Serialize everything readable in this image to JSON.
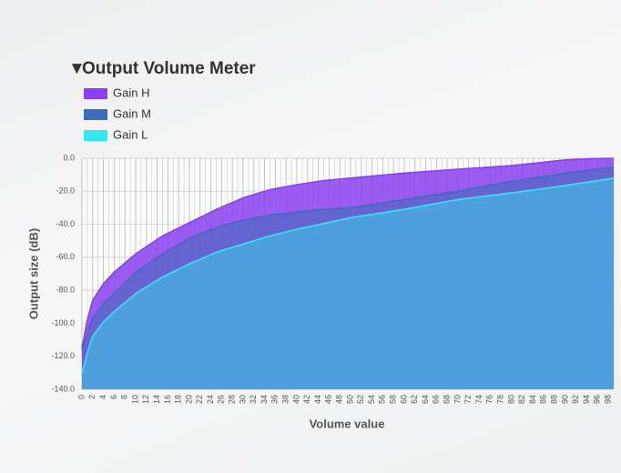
{
  "chart_data": {
    "type": "area",
    "title": "Output Volume Meter",
    "x_label": "Volume value",
    "y_label": "Output size (dB)",
    "x": [
      0,
      1,
      2,
      4,
      6,
      10,
      15,
      20,
      25,
      30,
      35,
      40,
      45,
      50,
      55,
      60,
      65,
      70,
      75,
      80,
      85,
      90,
      95,
      99
    ],
    "series": [
      {
        "name": "Gain H",
        "color": "#8a3ff0",
        "values": [
          -115,
          -98,
          -86,
          -76,
          -69,
          -58,
          -47,
          -39,
          -31,
          -24,
          -19,
          -16,
          -13.5,
          -12,
          -10.5,
          -9,
          -7.8,
          -6.6,
          -5.5,
          -4.4,
          -2.7,
          -1,
          -0.2,
          0
        ]
      },
      {
        "name": "Gain M",
        "color": "#3b6db8",
        "values": [
          -116,
          -106,
          -97,
          -88,
          -82,
          -69,
          -58,
          -48.5,
          -42,
          -37.5,
          -34.5,
          -32.5,
          -31,
          -30,
          -27.5,
          -25,
          -22.5,
          -20,
          -17,
          -14,
          -11.5,
          -9,
          -7,
          -5.5
        ]
      },
      {
        "name": "Gain L",
        "color": "#33e6f0",
        "values": [
          -130,
          -118,
          -108,
          -99,
          -93,
          -82,
          -72,
          -64,
          -57,
          -52,
          -47,
          -43,
          -39.5,
          -36,
          -33.5,
          -31,
          -28,
          -25,
          -23,
          -21,
          -18.8,
          -16.5,
          -14,
          -12
        ]
      }
    ],
    "xlim": [
      0,
      99
    ],
    "xticks": [
      0,
      2,
      4,
      6,
      8,
      10,
      12,
      14,
      16,
      18,
      20,
      22,
      24,
      26,
      28,
      30,
      32,
      34,
      36,
      38,
      40,
      42,
      44,
      46,
      48,
      50,
      52,
      54,
      56,
      58,
      60,
      62,
      64,
      66,
      68,
      70,
      72,
      74,
      76,
      78,
      80,
      82,
      84,
      86,
      88,
      90,
      92,
      94,
      96,
      98
    ],
    "ylim": [
      -140,
      0
    ],
    "yticks": [
      {
        "value": 0,
        "label": "0.0"
      },
      {
        "value": -20,
        "label": "-20.0"
      },
      {
        "value": -40,
        "label": "-40.0"
      },
      {
        "value": -60,
        "label": "-60.0"
      },
      {
        "value": -80,
        "label": "-80.0"
      },
      {
        "value": -100,
        "label": "-100.0"
      },
      {
        "value": -120,
        "label": "-120.0"
      },
      {
        "value": -140,
        "label": "-140.0"
      }
    ],
    "grid": true
  }
}
